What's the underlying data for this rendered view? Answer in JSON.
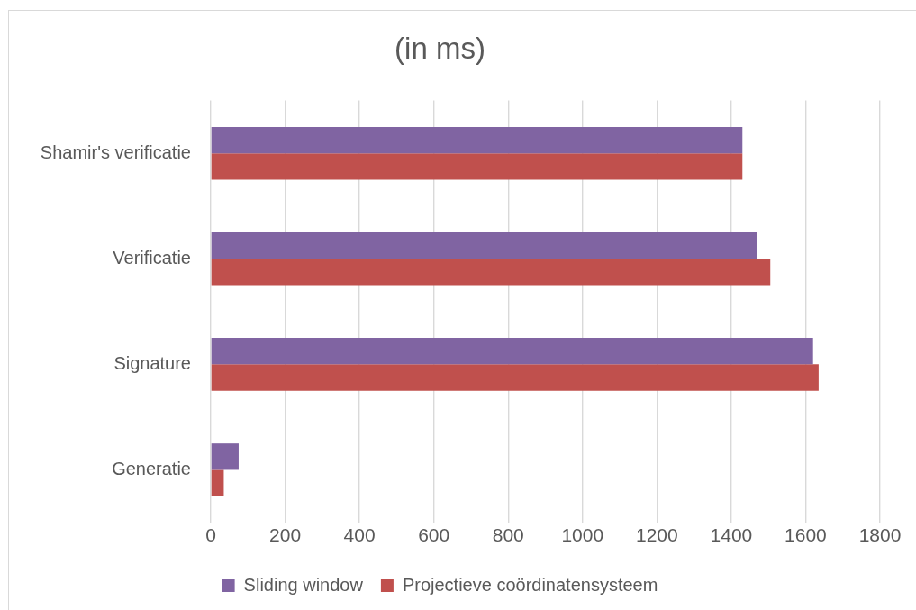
{
  "chart_data": {
    "type": "bar",
    "title": "(in ms)",
    "orientation": "horizontal",
    "categories": [
      "Shamir's verificatie",
      "Verificatie",
      "Signature",
      "Generatie"
    ],
    "series": [
      {
        "name": "Sliding window",
        "color": "#8064a2",
        "values": [
          1430,
          1470,
          1620,
          75
        ]
      },
      {
        "name": "Projectieve coördinatensysteem",
        "color": "#c0504d",
        "values": [
          1430,
          1505,
          1635,
          35
        ]
      }
    ],
    "xlim": [
      0,
      1800
    ],
    "xticks": [
      0,
      200,
      400,
      600,
      800,
      1000,
      1200,
      1400,
      1600,
      1800
    ],
    "grid": "x",
    "legend": "bottom"
  }
}
